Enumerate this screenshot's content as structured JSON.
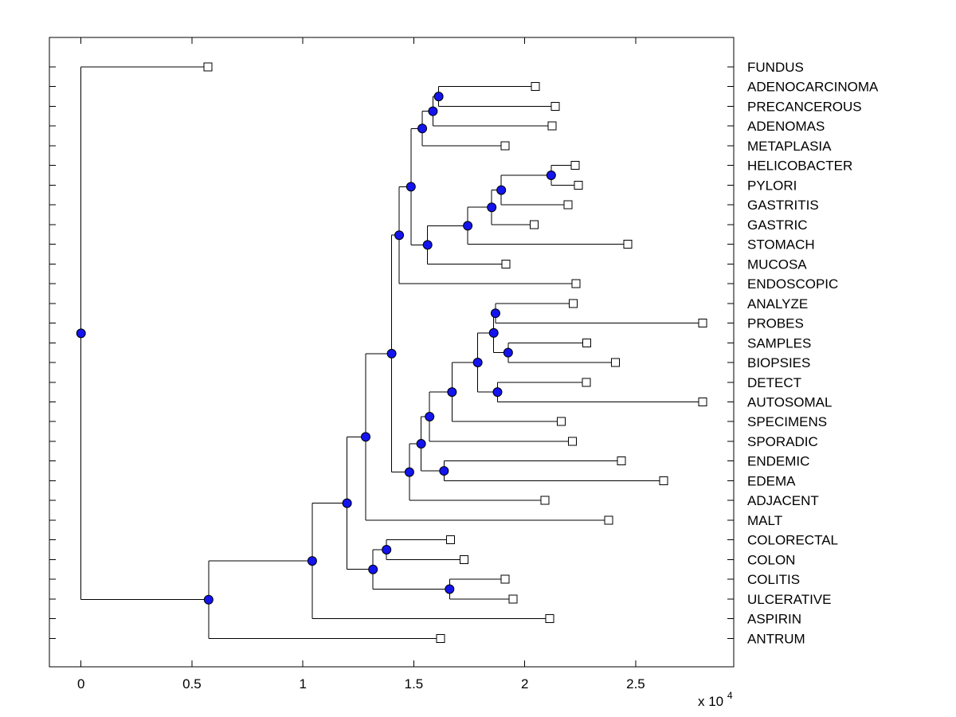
{
  "figure": {
    "background_color": "#ffffff"
  },
  "chart_data": {
    "type": "dendrogram",
    "title": "",
    "orientation": "horizontal-root-left",
    "x_axis": {
      "tick_labels": [
        "0",
        "0.5",
        "1",
        "1.5",
        "2",
        "2.5"
      ],
      "tick_values": [
        0,
        5000,
        10000,
        15000,
        20000,
        25000
      ],
      "multiplier_text": "x 10",
      "multiplier_exponent": "4",
      "unit_scale": 10000,
      "grid": "off"
    },
    "y_axis": {
      "labels_side": "right",
      "ticks": "one-per-leaf-both-edges"
    },
    "styles": {
      "line_color": "#000000",
      "leaf_marker": "open-square",
      "leaf_marker_fill": "#ffffff",
      "branch_marker": "filled-circle",
      "branch_marker_fill": "#1414ef",
      "marker_edge_color": "#000000",
      "label_color": "#000000"
    },
    "leaves": [
      {
        "name": "FUNDUS",
        "dist": 5720
      },
      {
        "name": "ADENOCARCINOMA",
        "dist": 20470
      },
      {
        "name": "PRECANCEROUS",
        "dist": 21370
      },
      {
        "name": "ADENOMAS",
        "dist": 21240
      },
      {
        "name": "METAPLASIA",
        "dist": 19120
      },
      {
        "name": "HELICOBACTER",
        "dist": 22280
      },
      {
        "name": "PYLORI",
        "dist": 22410
      },
      {
        "name": "GASTRITIS",
        "dist": 21950
      },
      {
        "name": "GASTRIC",
        "dist": 20430
      },
      {
        "name": "STOMACH",
        "dist": 24650
      },
      {
        "name": "MUCOSA",
        "dist": 19150
      },
      {
        "name": "ENDOSCOPIC",
        "dist": 22300
      },
      {
        "name": "ANALYZE",
        "dist": 22180
      },
      {
        "name": "PROBES",
        "dist": 28010
      },
      {
        "name": "SAMPLES",
        "dist": 22800
      },
      {
        "name": "BIOPSIES",
        "dist": 24080
      },
      {
        "name": "DETECT",
        "dist": 22780
      },
      {
        "name": "AUTOSOMAL",
        "dist": 28010
      },
      {
        "name": "SPECIMENS",
        "dist": 21640
      },
      {
        "name": "SPORADIC",
        "dist": 22140
      },
      {
        "name": "ENDEMIC",
        "dist": 24360
      },
      {
        "name": "EDEMA",
        "dist": 26250
      },
      {
        "name": "ADJACENT",
        "dist": 20900
      },
      {
        "name": "MALT",
        "dist": 23780
      },
      {
        "name": "COLORECTAL",
        "dist": 16650
      },
      {
        "name": "COLON",
        "dist": 17260
      },
      {
        "name": "COLITIS",
        "dist": 19110
      },
      {
        "name": "ULCERATIVE",
        "dist": 19470
      },
      {
        "name": "ASPIRIN",
        "dist": 21120
      },
      {
        "name": "ANTRUM",
        "dist": 16200
      }
    ],
    "branches": [
      {
        "id": "N1",
        "dist": 16120,
        "children": [
          "L2",
          "L3"
        ]
      },
      {
        "id": "N2",
        "dist": 15860,
        "children": [
          "N1",
          "L4"
        ]
      },
      {
        "id": "N3",
        "dist": 15380,
        "children": [
          "N2",
          "L5"
        ]
      },
      {
        "id": "N4",
        "dist": 21190,
        "children": [
          "L6",
          "L7"
        ]
      },
      {
        "id": "N5",
        "dist": 18940,
        "children": [
          "N4",
          "L8"
        ]
      },
      {
        "id": "N6",
        "dist": 18510,
        "children": [
          "N5",
          "L9"
        ]
      },
      {
        "id": "N7",
        "dist": 17430,
        "children": [
          "N6",
          "L10"
        ]
      },
      {
        "id": "N8",
        "dist": 15620,
        "children": [
          "N7",
          "L11"
        ]
      },
      {
        "id": "N9",
        "dist": 14870,
        "children": [
          "N3",
          "N8"
        ]
      },
      {
        "id": "N10",
        "dist": 14340,
        "children": [
          "N9",
          "L12"
        ]
      },
      {
        "id": "N11",
        "dist": 18680,
        "children": [
          "L13",
          "L14"
        ]
      },
      {
        "id": "N12",
        "dist": 19250,
        "children": [
          "L15",
          "L16"
        ]
      },
      {
        "id": "N13",
        "dist": 18600,
        "children": [
          "N11",
          "N12"
        ]
      },
      {
        "id": "N14",
        "dist": 18770,
        "children": [
          "L17",
          "L18"
        ]
      },
      {
        "id": "N15",
        "dist": 17880,
        "children": [
          "N13",
          "N14"
        ]
      },
      {
        "id": "N16",
        "dist": 16720,
        "children": [
          "N15",
          "L19"
        ]
      },
      {
        "id": "N17",
        "dist": 15710,
        "children": [
          "N16",
          "L20"
        ]
      },
      {
        "id": "N18",
        "dist": 16360,
        "children": [
          "L21",
          "L22"
        ]
      },
      {
        "id": "N19",
        "dist": 15330,
        "children": [
          "N17",
          "N18"
        ]
      },
      {
        "id": "N20",
        "dist": 14800,
        "children": [
          "N19",
          "L23"
        ]
      },
      {
        "id": "N21",
        "dist": 14000,
        "children": [
          "N10",
          "N20"
        ]
      },
      {
        "id": "N22",
        "dist": 12830,
        "children": [
          "N21",
          "L24"
        ]
      },
      {
        "id": "N23",
        "dist": 13770,
        "children": [
          "L25",
          "L26"
        ]
      },
      {
        "id": "N24",
        "dist": 16610,
        "children": [
          "L27",
          "L28"
        ]
      },
      {
        "id": "N25",
        "dist": 13160,
        "children": [
          "N23",
          "N24"
        ]
      },
      {
        "id": "N26",
        "dist": 11990,
        "children": [
          "N22",
          "N25"
        ]
      },
      {
        "id": "N27",
        "dist": 10420,
        "children": [
          "N26",
          "L29"
        ]
      },
      {
        "id": "N28",
        "dist": 5750,
        "children": [
          "N27",
          "L30"
        ]
      },
      {
        "id": "N29",
        "dist": 0,
        "children": [
          "L1",
          "N28"
        ]
      }
    ]
  }
}
